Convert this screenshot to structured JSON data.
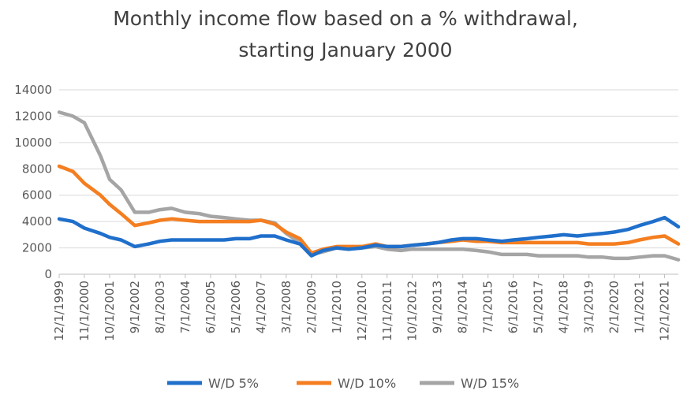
{
  "chart_data": {
    "type": "line",
    "title_line1": "Monthly income flow based on a % withdrawal,",
    "title_line2": "starting January 2000",
    "xlabel": "",
    "ylabel": "",
    "ylim": [
      0,
      14000
    ],
    "y_ticks": [
      "0",
      "2000",
      "4000",
      "6000",
      "8000",
      "10000",
      "12000",
      "14000"
    ],
    "x_tick_labels": [
      "12/1/1999",
      "11/1/2000",
      "10/1/2001",
      "9/1/2002",
      "8/1/2003",
      "7/1/2004",
      "6/1/2005",
      "5/1/2006",
      "4/1/2007",
      "3/1/2008",
      "2/1/2009",
      "1/1/2010",
      "12/1/2010",
      "11/1/2011",
      "10/1/2012",
      "9/1/2013",
      "8/1/2014",
      "7/1/2015",
      "6/1/2016",
      "5/1/2017",
      "4/1/2018",
      "3/1/2019",
      "2/1/2020",
      "1/1/2021",
      "12/1/2021"
    ],
    "grid": true,
    "legend_position": "bottom",
    "x": [
      "12/1/1999",
      "6/1/2000",
      "11/1/2000",
      "6/1/2001",
      "10/1/2001",
      "3/1/2002",
      "9/1/2002",
      "3/1/2003",
      "8/1/2003",
      "1/1/2004",
      "7/1/2004",
      "1/1/2005",
      "6/1/2005",
      "12/1/2005",
      "5/1/2006",
      "11/1/2006",
      "4/1/2007",
      "10/1/2007",
      "3/1/2008",
      "9/1/2008",
      "2/1/2009",
      "7/1/2009",
      "1/1/2010",
      "6/1/2010",
      "12/1/2010",
      "6/1/2011",
      "11/1/2011",
      "5/1/2012",
      "10/1/2012",
      "4/1/2013",
      "9/1/2013",
      "3/1/2014",
      "8/1/2014",
      "2/1/2015",
      "7/1/2015",
      "1/1/2016",
      "6/1/2016",
      "12/1/2016",
      "5/1/2017",
      "11/1/2017",
      "4/1/2018",
      "10/1/2018",
      "3/1/2019",
      "9/1/2019",
      "2/1/2020",
      "8/1/2020",
      "1/1/2021",
      "7/1/2021",
      "12/1/2021",
      "6/1/2022"
    ],
    "series": [
      {
        "name": "W/D 5%",
        "color": "#1f6fcb",
        "values": [
          4200,
          4000,
          3500,
          3100,
          2800,
          2600,
          2100,
          2300,
          2500,
          2600,
          2600,
          2600,
          2600,
          2600,
          2700,
          2700,
          2900,
          2900,
          2600,
          2300,
          1400,
          1800,
          2000,
          1900,
          2000,
          2200,
          2100,
          2100,
          2200,
          2300,
          2400,
          2600,
          2700,
          2700,
          2600,
          2500,
          2600,
          2700,
          2800,
          2900,
          3000,
          2900,
          3000,
          3100,
          3200,
          3400,
          3700,
          4000,
          4300,
          3600
        ]
      },
      {
        "name": "W/D 10%",
        "color": "#f47e20",
        "values": [
          8200,
          7800,
          6900,
          6000,
          5300,
          4600,
          3700,
          3900,
          4100,
          4200,
          4100,
          4000,
          4000,
          4000,
          4000,
          4000,
          4100,
          3800,
          3200,
          2700,
          1600,
          1900,
          2100,
          2100,
          2100,
          2300,
          2100,
          2100,
          2200,
          2300,
          2400,
          2500,
          2600,
          2500,
          2500,
          2400,
          2400,
          2400,
          2400,
          2400,
          2400,
          2400,
          2300,
          2300,
          2300,
          2400,
          2600,
          2800,
          2900,
          2300
        ]
      },
      {
        "name": "W/D 15%",
        "color": "#a5a5a5",
        "values": [
          12300,
          12000,
          11500,
          9000,
          7200,
          6400,
          4700,
          4700,
          4900,
          5000,
          4700,
          4600,
          4400,
          4300,
          4200,
          4100,
          4100,
          3900,
          3100,
          2400,
          1500,
          1700,
          2000,
          1900,
          2000,
          2100,
          1900,
          1800,
          1900,
          1900,
          1900,
          1900,
          1900,
          1800,
          1700,
          1500,
          1500,
          1500,
          1400,
          1400,
          1400,
          1400,
          1300,
          1300,
          1200,
          1200,
          1300,
          1400,
          1400,
          1100
        ]
      }
    ]
  }
}
